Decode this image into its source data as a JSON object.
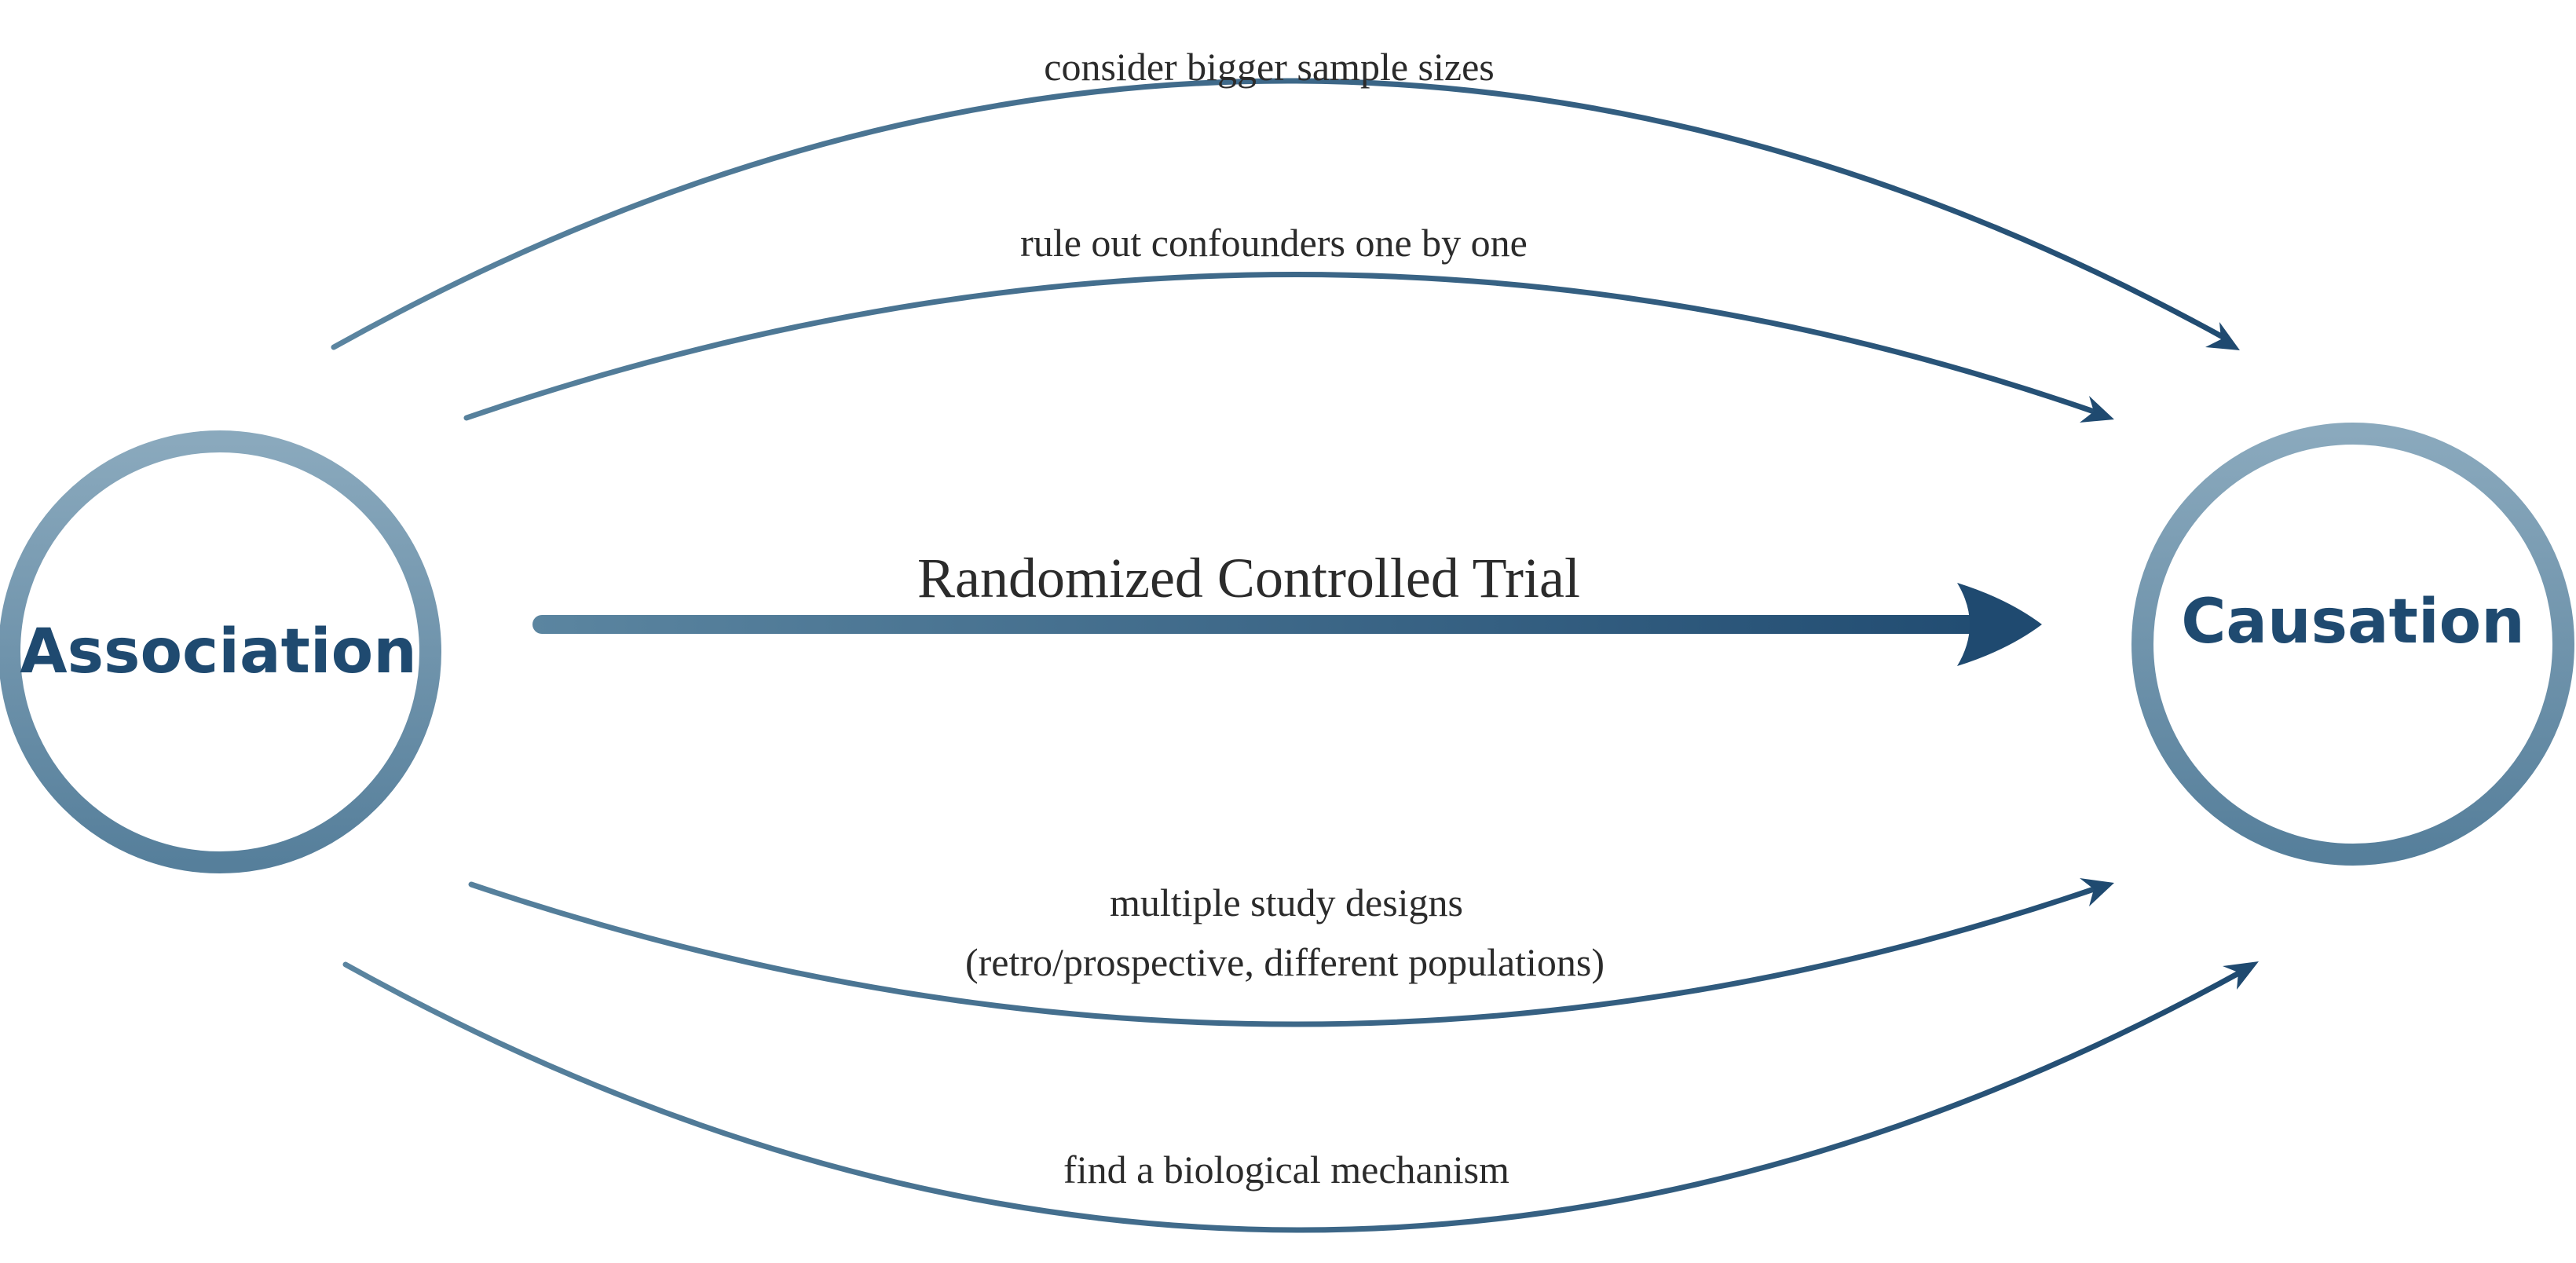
{
  "colors": {
    "ring_light": "#8aa9bd",
    "ring_dark": "#567f9b",
    "arrow_light": "#5b85a0",
    "arrow_dark": "#1f4a70",
    "node_text": "#1f4a70",
    "label_text": "#2b2b2b"
  },
  "nodes": {
    "association": {
      "label": "Association"
    },
    "causation": {
      "label": "Causation"
    }
  },
  "edges": {
    "sample_sizes": {
      "label": "consider bigger sample sizes"
    },
    "confounders": {
      "label": "rule out confounders one by one"
    },
    "rct": {
      "label": "Randomized Controlled Trial"
    },
    "study_designs": {
      "label_line1": "multiple study designs",
      "label_line2": "(retro/prospective, different populations)"
    },
    "mechanism": {
      "label": "find a biological mechanism"
    }
  }
}
